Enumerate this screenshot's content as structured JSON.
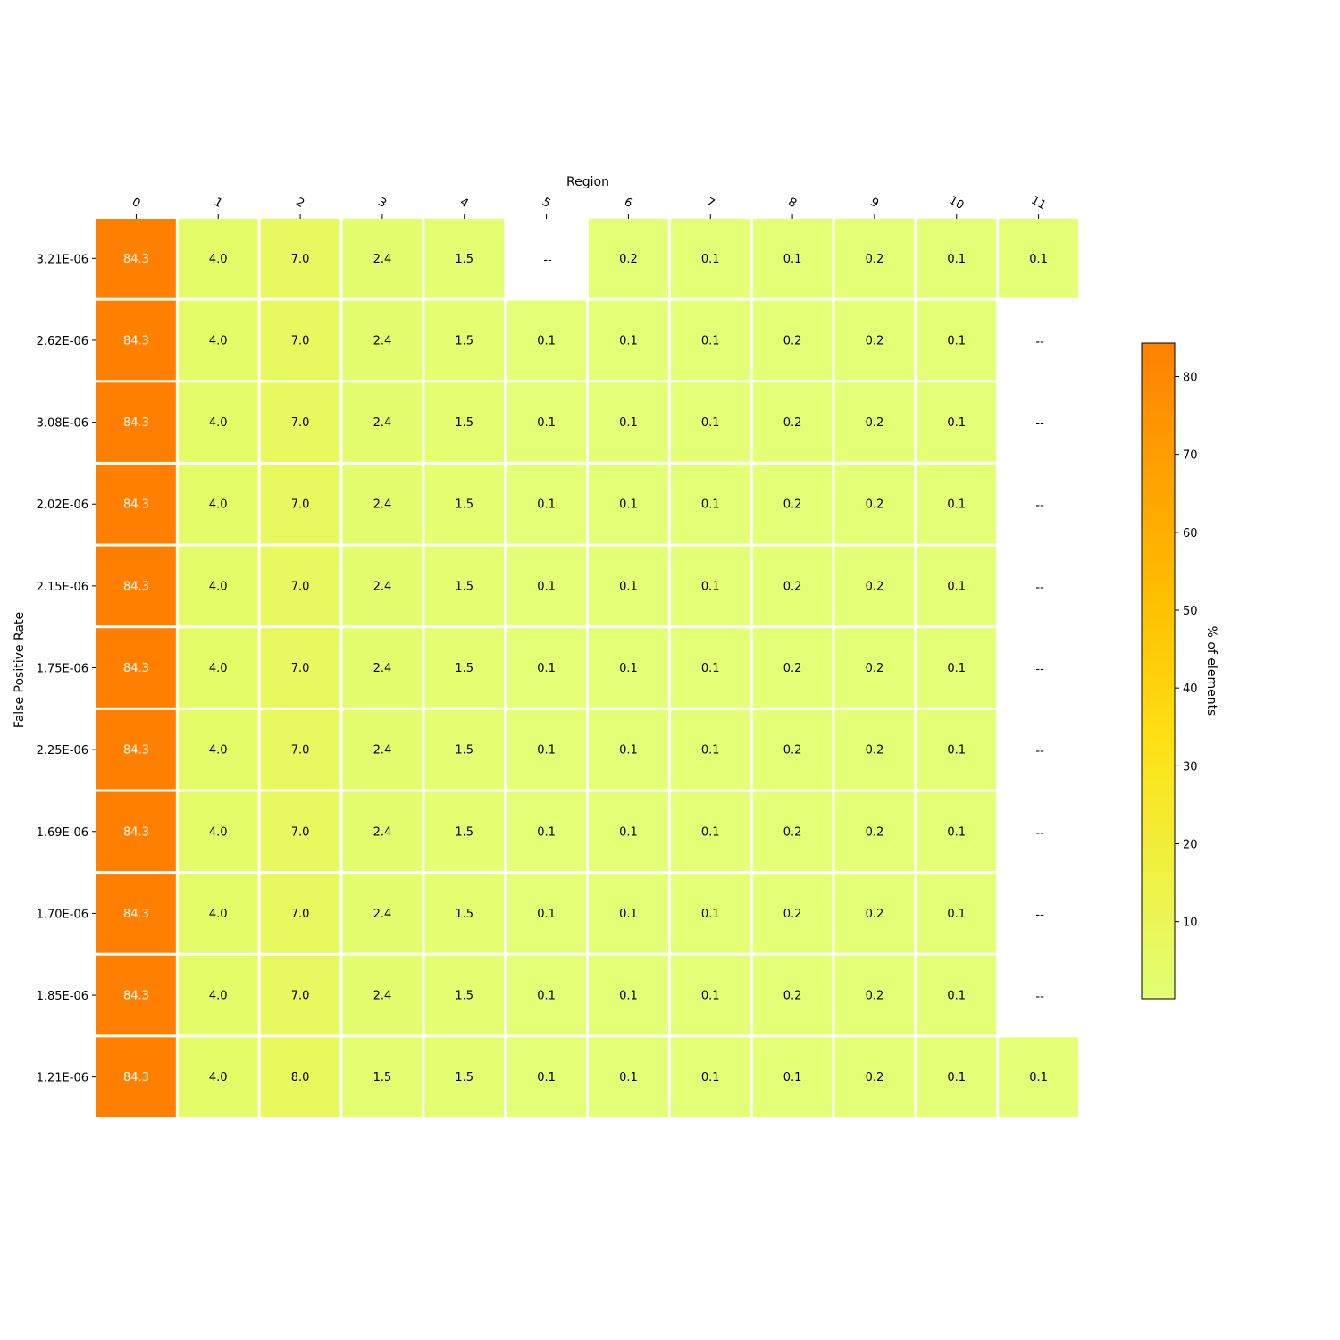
{
  "chart_data": {
    "type": "heatmap",
    "xlabel": "Region",
    "ylabel": "False Positive Rate",
    "x_categories": [
      "0",
      "1",
      "2",
      "3",
      "4",
      "5",
      "6",
      "7",
      "8",
      "9",
      "10",
      "11"
    ],
    "y_categories": [
      "3.21E-06",
      "2.62E-06",
      "3.08E-06",
      "2.02E-06",
      "2.15E-06",
      "1.75E-06",
      "2.25E-06",
      "1.69E-06",
      "1.70E-06",
      "1.85E-06",
      "1.21E-06"
    ],
    "values": [
      [
        84.3,
        4.0,
        7.0,
        2.4,
        1.5,
        null,
        0.2,
        0.1,
        0.1,
        0.2,
        0.1,
        0.1
      ],
      [
        84.3,
        4.0,
        7.0,
        2.4,
        1.5,
        0.1,
        0.1,
        0.1,
        0.2,
        0.2,
        0.1,
        null
      ],
      [
        84.3,
        4.0,
        7.0,
        2.4,
        1.5,
        0.1,
        0.1,
        0.1,
        0.2,
        0.2,
        0.1,
        null
      ],
      [
        84.3,
        4.0,
        7.0,
        2.4,
        1.5,
        0.1,
        0.1,
        0.1,
        0.2,
        0.2,
        0.1,
        null
      ],
      [
        84.3,
        4.0,
        7.0,
        2.4,
        1.5,
        0.1,
        0.1,
        0.1,
        0.2,
        0.2,
        0.1,
        null
      ],
      [
        84.3,
        4.0,
        7.0,
        2.4,
        1.5,
        0.1,
        0.1,
        0.1,
        0.2,
        0.2,
        0.1,
        null
      ],
      [
        84.3,
        4.0,
        7.0,
        2.4,
        1.5,
        0.1,
        0.1,
        0.1,
        0.2,
        0.2,
        0.1,
        null
      ],
      [
        84.3,
        4.0,
        7.0,
        2.4,
        1.5,
        0.1,
        0.1,
        0.1,
        0.2,
        0.2,
        0.1,
        null
      ],
      [
        84.3,
        4.0,
        7.0,
        2.4,
        1.5,
        0.1,
        0.1,
        0.1,
        0.2,
        0.2,
        0.1,
        null
      ],
      [
        84.3,
        4.0,
        7.0,
        2.4,
        1.5,
        0.1,
        0.1,
        0.1,
        0.2,
        0.2,
        0.1,
        null
      ],
      [
        84.3,
        4.0,
        8.0,
        1.5,
        1.5,
        0.1,
        0.1,
        0.1,
        0.1,
        0.2,
        0.1,
        0.1
      ]
    ],
    "missing_label": "--",
    "colorbar": {
      "label": "% of elements",
      "ticks": [
        10,
        20,
        30,
        40,
        50,
        60,
        70,
        80
      ],
      "range": [
        0.1,
        84.3
      ],
      "colors": [
        "#e2ff75",
        "#f0f040",
        "#ffe014",
        "#ffc000",
        "#ffa200",
        "#ff8000"
      ]
    }
  }
}
